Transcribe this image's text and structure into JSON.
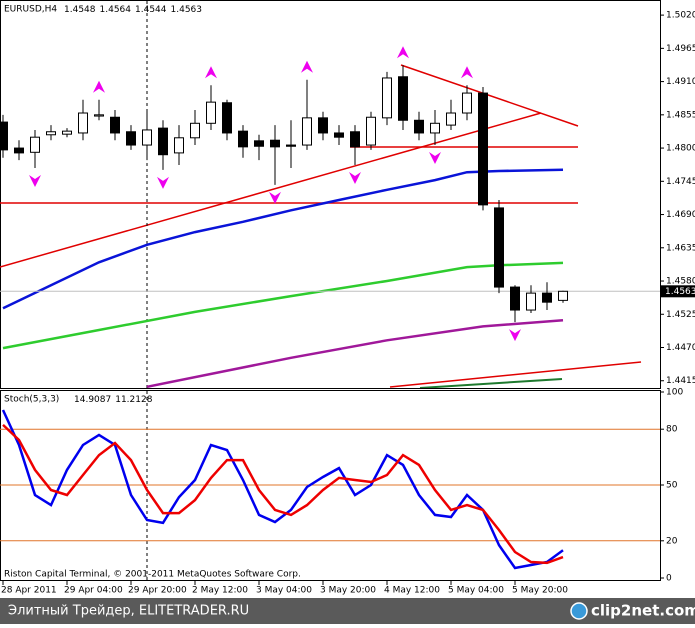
{
  "chart_data": [
    {
      "type": "candlestick",
      "title": "EURUSD,H4",
      "open": [
        1.4843,
        1.48,
        1.4793,
        1.4822,
        1.4823,
        1.4825,
        1.4853,
        1.4851,
        1.4827,
        1.4805,
        1.4833,
        1.4792,
        1.4817,
        1.4841,
        1.4875,
        1.4828,
        1.4812,
        1.4813,
        1.4805,
        1.4805,
        1.485,
        1.4825,
        1.4827,
        1.4805,
        1.485,
        1.4918,
        1.4846,
        1.4825,
        1.4838,
        1.4858,
        1.4891,
        1.4701,
        1.457,
        1.4532,
        1.456,
        1.4548
      ],
      "high": [
        1.4855,
        1.4813,
        1.483,
        1.4838,
        1.4833,
        1.488,
        1.488,
        1.4863,
        1.4838,
        1.486,
        1.4846,
        1.4838,
        1.4863,
        1.4904,
        1.488,
        1.4838,
        1.4822,
        1.4838,
        1.4846,
        1.4913,
        1.486,
        1.4838,
        1.4838,
        1.486,
        1.4926,
        1.4937,
        1.486,
        1.4863,
        1.488,
        1.4904,
        1.4901,
        1.4714,
        1.4573,
        1.4573,
        1.4578,
        1.4564
      ],
      "low": [
        1.4784,
        1.478,
        1.4767,
        1.4813,
        1.4818,
        1.4813,
        1.4846,
        1.4813,
        1.4797,
        1.478,
        1.4764,
        1.4772,
        1.4805,
        1.483,
        1.4813,
        1.4784,
        1.478,
        1.4739,
        1.4767,
        1.4797,
        1.4813,
        1.4805,
        1.4772,
        1.4797,
        1.4838,
        1.483,
        1.4813,
        1.4805,
        1.483,
        1.4846,
        1.4697,
        1.456,
        1.4512,
        1.4527,
        1.4532,
        1.4544
      ],
      "close": [
        1.4797,
        1.4792,
        1.4818,
        1.4827,
        1.4828,
        1.4858,
        1.4855,
        1.4825,
        1.4805,
        1.483,
        1.4789,
        1.4817,
        1.4841,
        1.4876,
        1.4825,
        1.4802,
        1.4803,
        1.4802,
        1.4803,
        1.485,
        1.4825,
        1.4818,
        1.4802,
        1.4851,
        1.4916,
        1.4846,
        1.4825,
        1.4841,
        1.4858,
        1.4891,
        1.4706,
        1.457,
        1.4532,
        1.456,
        1.4545,
        1.4563
      ],
      "up_color": "#ffffff",
      "down_color": "#000000",
      "fractals_up": [
        6,
        13,
        19,
        25,
        29
      ],
      "fractals_down": [
        2,
        10,
        17,
        22,
        27,
        32
      ],
      "fractal_color": "#ee00ee",
      "series": [
        {
          "color": "#0a14d8",
          "x": [
            0,
            3,
            6,
            9,
            12,
            15,
            18,
            21,
            24,
            27,
            29,
            31,
            35
          ],
          "values": [
            1.4535,
            1.4573,
            1.4611,
            1.464,
            1.4661,
            1.4678,
            1.4697,
            1.4714,
            1.4731,
            1.4747,
            1.476,
            1.4762,
            1.4764
          ]
        },
        {
          "color": "#2ecc2e",
          "x": [
            0,
            6,
            12,
            18,
            24,
            29,
            31,
            35
          ],
          "values": [
            1.4469,
            1.4499,
            1.4529,
            1.4555,
            1.458,
            1.4603,
            1.4606,
            1.461
          ]
        },
        {
          "color": "#a0189a",
          "x": [
            9,
            18,
            24,
            30,
            35
          ],
          "values": [
            1.4405,
            1.4453,
            1.4482,
            1.4505,
            1.4515
          ]
        }
      ],
      "xlim": [
        -0.1875,
        41.0625
      ],
      "ylim": [
        1.4403,
        1.5045
      ],
      "yticks": [
        {
          "value": 1.502,
          "label": "1.5020"
        },
        1.4965,
        {
          "value": 1.491,
          "label": "1.4910"
        },
        1.4855,
        {
          "value": 1.48,
          "label": "1.4800"
        },
        1.4745,
        {
          "value": 1.469,
          "label": "1.4690"
        },
        1.4635,
        {
          "value": 1.458,
          "label": "1.4580"
        },
        1.4525,
        {
          "value": 1.447,
          "label": "1.4470"
        },
        1.4415
      ]
    },
    {
      "type": "line",
      "title": "Stoch(5,3,3)",
      "series": [
        {
          "color": "#0000ee",
          "values": [
            90.3,
            71.5,
            44.6,
            39.2,
            58.1,
            71.5,
            76.9,
            71.5,
            44.6,
            31.2,
            29.6,
            43.5,
            52.7,
            71.5,
            68.8,
            52.7,
            33.9,
            30.1,
            36.6,
            48.9,
            54.3,
            59.1,
            44.6,
            50.0,
            66.1,
            60.8,
            44.6,
            33.9,
            32.8,
            44.6,
            36.6,
            17.7,
            5.4,
            7.0,
            8.6,
            14.9087
          ]
        },
        {
          "color": "#ee0000",
          "values": [
            82.3,
            74.2,
            58.1,
            47.3,
            44.6,
            55.4,
            66.1,
            72.6,
            63.4,
            47.3,
            34.9,
            34.9,
            41.9,
            53.8,
            63.4,
            63.4,
            47.3,
            36.6,
            33.9,
            39.2,
            47.3,
            53.8,
            52.7,
            51.6,
            55.4,
            66.1,
            60.8,
            47.3,
            36.6,
            39.2,
            36.6,
            25.8,
            14.0,
            8.6,
            8.1,
            11.2128
          ]
        }
      ],
      "levels": [
        80,
        50,
        20
      ],
      "level_color": "#e0742a",
      "xlim": [
        -0.1875,
        41.0625
      ],
      "ylim": [
        0,
        100
      ],
      "yticks": [
        100,
        80,
        50,
        20,
        0
      ],
      "xticks": [
        {
          "value": 0,
          "label": "28 Apr 2011"
        },
        {
          "value": 4,
          "label": "29 Apr 04:00"
        },
        {
          "value": 8,
          "label": "29 Apr 20:00"
        },
        {
          "value": 12,
          "label": "2 May 12:00"
        },
        {
          "value": 16,
          "label": "3 May 04:00"
        },
        {
          "value": 20,
          "label": "3 May 20:00"
        },
        {
          "value": 24,
          "label": "4 May 12:00"
        },
        {
          "value": 28,
          "label": "5 May 04:00"
        },
        {
          "value": 32,
          "label": "5 May 20:00"
        }
      ]
    }
  ],
  "copyright": "Riston Capital Terminal, © 2001-2011 MetaQuotes Software Corp.",
  "footer": {
    "text": "Элитный Трейдер, ELITETRADER.RU",
    "logo": "clip2net.com"
  }
}
